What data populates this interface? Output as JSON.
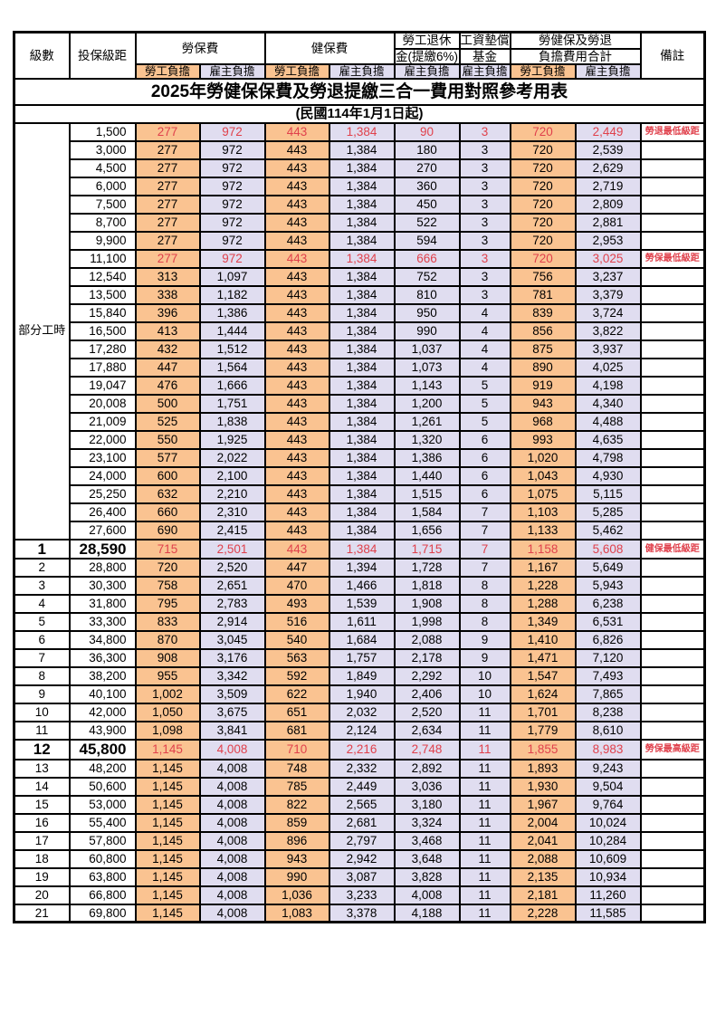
{
  "page": {
    "title": "2025年勞健保保費及勞退提繳三合一費用對照參考用表",
    "subtitle": "(民國114年1月1日起)"
  },
  "header": {
    "level": "級數",
    "bracket": "投保級距",
    "labor_insurance": "勞保費",
    "health_insurance": "健保費",
    "pension_top": "勞工退休",
    "pension_bottom": "金(提繳6%)",
    "wage_fund_top": "工資墊償",
    "wage_fund_bottom": "基金",
    "total_top": "勞健保及勞退",
    "total_bottom": "負擔費用合計",
    "remark": "備註",
    "employee_share": "勞工負擔",
    "employer_share": "雇主負擔"
  },
  "part_time_label": "部分工時",
  "colors": {
    "employee_bg": "#FAC391",
    "employer_bg": "#E0DDF0",
    "highlight_text": "#E0414C",
    "border": "#000000"
  },
  "rows": [
    {
      "level": null,
      "bracket": "1,500",
      "cells": [
        "277",
        "972",
        "443",
        "1,384",
        "90",
        "3",
        "720",
        "2,449"
      ],
      "remark": "勞退最低級距",
      "highlight": true,
      "big": false
    },
    {
      "level": null,
      "bracket": "3,000",
      "cells": [
        "277",
        "972",
        "443",
        "1,384",
        "180",
        "3",
        "720",
        "2,539"
      ],
      "remark": "",
      "highlight": false,
      "big": false
    },
    {
      "level": null,
      "bracket": "4,500",
      "cells": [
        "277",
        "972",
        "443",
        "1,384",
        "270",
        "3",
        "720",
        "2,629"
      ],
      "remark": "",
      "highlight": false,
      "big": false
    },
    {
      "level": null,
      "bracket": "6,000",
      "cells": [
        "277",
        "972",
        "443",
        "1,384",
        "360",
        "3",
        "720",
        "2,719"
      ],
      "remark": "",
      "highlight": false,
      "big": false
    },
    {
      "level": null,
      "bracket": "7,500",
      "cells": [
        "277",
        "972",
        "443",
        "1,384",
        "450",
        "3",
        "720",
        "2,809"
      ],
      "remark": "",
      "highlight": false,
      "big": false
    },
    {
      "level": null,
      "bracket": "8,700",
      "cells": [
        "277",
        "972",
        "443",
        "1,384",
        "522",
        "3",
        "720",
        "2,881"
      ],
      "remark": "",
      "highlight": false,
      "big": false
    },
    {
      "level": null,
      "bracket": "9,900",
      "cells": [
        "277",
        "972",
        "443",
        "1,384",
        "594",
        "3",
        "720",
        "2,953"
      ],
      "remark": "",
      "highlight": false,
      "big": false
    },
    {
      "level": null,
      "bracket": "11,100",
      "cells": [
        "277",
        "972",
        "443",
        "1,384",
        "666",
        "3",
        "720",
        "3,025"
      ],
      "remark": "勞保最低級距",
      "highlight": true,
      "big": false
    },
    {
      "level": null,
      "bracket": "12,540",
      "cells": [
        "313",
        "1,097",
        "443",
        "1,384",
        "752",
        "3",
        "756",
        "3,237"
      ],
      "remark": "",
      "highlight": false,
      "big": false
    },
    {
      "level": null,
      "bracket": "13,500",
      "cells": [
        "338",
        "1,182",
        "443",
        "1,384",
        "810",
        "3",
        "781",
        "3,379"
      ],
      "remark": "",
      "highlight": false,
      "big": false
    },
    {
      "level": null,
      "bracket": "15,840",
      "cells": [
        "396",
        "1,386",
        "443",
        "1,384",
        "950",
        "4",
        "839",
        "3,724"
      ],
      "remark": "",
      "highlight": false,
      "big": false
    },
    {
      "level": null,
      "bracket": "16,500",
      "cells": [
        "413",
        "1,444",
        "443",
        "1,384",
        "990",
        "4",
        "856",
        "3,822"
      ],
      "remark": "",
      "highlight": false,
      "big": false
    },
    {
      "level": null,
      "bracket": "17,280",
      "cells": [
        "432",
        "1,512",
        "443",
        "1,384",
        "1,037",
        "4",
        "875",
        "3,937"
      ],
      "remark": "",
      "highlight": false,
      "big": false
    },
    {
      "level": null,
      "bracket": "17,880",
      "cells": [
        "447",
        "1,564",
        "443",
        "1,384",
        "1,073",
        "4",
        "890",
        "4,025"
      ],
      "remark": "",
      "highlight": false,
      "big": false
    },
    {
      "level": null,
      "bracket": "19,047",
      "cells": [
        "476",
        "1,666",
        "443",
        "1,384",
        "1,143",
        "5",
        "919",
        "4,198"
      ],
      "remark": "",
      "highlight": false,
      "big": false
    },
    {
      "level": null,
      "bracket": "20,008",
      "cells": [
        "500",
        "1,751",
        "443",
        "1,384",
        "1,200",
        "5",
        "943",
        "4,340"
      ],
      "remark": "",
      "highlight": false,
      "big": false
    },
    {
      "level": null,
      "bracket": "21,009",
      "cells": [
        "525",
        "1,838",
        "443",
        "1,384",
        "1,261",
        "5",
        "968",
        "4,488"
      ],
      "remark": "",
      "highlight": false,
      "big": false
    },
    {
      "level": null,
      "bracket": "22,000",
      "cells": [
        "550",
        "1,925",
        "443",
        "1,384",
        "1,320",
        "6",
        "993",
        "4,635"
      ],
      "remark": "",
      "highlight": false,
      "big": false
    },
    {
      "level": null,
      "bracket": "23,100",
      "cells": [
        "577",
        "2,022",
        "443",
        "1,384",
        "1,386",
        "6",
        "1,020",
        "4,798"
      ],
      "remark": "",
      "highlight": false,
      "big": false
    },
    {
      "level": null,
      "bracket": "24,000",
      "cells": [
        "600",
        "2,100",
        "443",
        "1,384",
        "1,440",
        "6",
        "1,043",
        "4,930"
      ],
      "remark": "",
      "highlight": false,
      "big": false
    },
    {
      "level": null,
      "bracket": "25,250",
      "cells": [
        "632",
        "2,210",
        "443",
        "1,384",
        "1,515",
        "6",
        "1,075",
        "5,115"
      ],
      "remark": "",
      "highlight": false,
      "big": false
    },
    {
      "level": null,
      "bracket": "26,400",
      "cells": [
        "660",
        "2,310",
        "443",
        "1,384",
        "1,584",
        "7",
        "1,103",
        "5,285"
      ],
      "remark": "",
      "highlight": false,
      "big": false
    },
    {
      "level": null,
      "bracket": "27,600",
      "cells": [
        "690",
        "2,415",
        "443",
        "1,384",
        "1,656",
        "7",
        "1,133",
        "5,462"
      ],
      "remark": "",
      "highlight": false,
      "big": false
    },
    {
      "level": "1",
      "bracket": "28,590",
      "cells": [
        "715",
        "2,501",
        "443",
        "1,384",
        "1,715",
        "7",
        "1,158",
        "5,608"
      ],
      "remark": "健保最低級距",
      "highlight": true,
      "big": true
    },
    {
      "level": "2",
      "bracket": "28,800",
      "cells": [
        "720",
        "2,520",
        "447",
        "1,394",
        "1,728",
        "7",
        "1,167",
        "5,649"
      ],
      "remark": "",
      "highlight": false,
      "big": false
    },
    {
      "level": "3",
      "bracket": "30,300",
      "cells": [
        "758",
        "2,651",
        "470",
        "1,466",
        "1,818",
        "8",
        "1,228",
        "5,943"
      ],
      "remark": "",
      "highlight": false,
      "big": false
    },
    {
      "level": "4",
      "bracket": "31,800",
      "cells": [
        "795",
        "2,783",
        "493",
        "1,539",
        "1,908",
        "8",
        "1,288",
        "6,238"
      ],
      "remark": "",
      "highlight": false,
      "big": false
    },
    {
      "level": "5",
      "bracket": "33,300",
      "cells": [
        "833",
        "2,914",
        "516",
        "1,611",
        "1,998",
        "8",
        "1,349",
        "6,531"
      ],
      "remark": "",
      "highlight": false,
      "big": false
    },
    {
      "level": "6",
      "bracket": "34,800",
      "cells": [
        "870",
        "3,045",
        "540",
        "1,684",
        "2,088",
        "9",
        "1,410",
        "6,826"
      ],
      "remark": "",
      "highlight": false,
      "big": false
    },
    {
      "level": "7",
      "bracket": "36,300",
      "cells": [
        "908",
        "3,176",
        "563",
        "1,757",
        "2,178",
        "9",
        "1,471",
        "7,120"
      ],
      "remark": "",
      "highlight": false,
      "big": false
    },
    {
      "level": "8",
      "bracket": "38,200",
      "cells": [
        "955",
        "3,342",
        "592",
        "1,849",
        "2,292",
        "10",
        "1,547",
        "7,493"
      ],
      "remark": "",
      "highlight": false,
      "big": false
    },
    {
      "level": "9",
      "bracket": "40,100",
      "cells": [
        "1,002",
        "3,509",
        "622",
        "1,940",
        "2,406",
        "10",
        "1,624",
        "7,865"
      ],
      "remark": "",
      "highlight": false,
      "big": false
    },
    {
      "level": "10",
      "bracket": "42,000",
      "cells": [
        "1,050",
        "3,675",
        "651",
        "2,032",
        "2,520",
        "11",
        "1,701",
        "8,238"
      ],
      "remark": "",
      "highlight": false,
      "big": false
    },
    {
      "level": "11",
      "bracket": "43,900",
      "cells": [
        "1,098",
        "3,841",
        "681",
        "2,124",
        "2,634",
        "11",
        "1,779",
        "8,610"
      ],
      "remark": "",
      "highlight": false,
      "big": false
    },
    {
      "level": "12",
      "bracket": "45,800",
      "cells": [
        "1,145",
        "4,008",
        "710",
        "2,216",
        "2,748",
        "11",
        "1,855",
        "8,983"
      ],
      "remark": "勞保最高級距",
      "highlight": true,
      "big": true
    },
    {
      "level": "13",
      "bracket": "48,200",
      "cells": [
        "1,145",
        "4,008",
        "748",
        "2,332",
        "2,892",
        "11",
        "1,893",
        "9,243"
      ],
      "remark": "",
      "highlight": false,
      "big": false
    },
    {
      "level": "14",
      "bracket": "50,600",
      "cells": [
        "1,145",
        "4,008",
        "785",
        "2,449",
        "3,036",
        "11",
        "1,930",
        "9,504"
      ],
      "remark": "",
      "highlight": false,
      "big": false
    },
    {
      "level": "15",
      "bracket": "53,000",
      "cells": [
        "1,145",
        "4,008",
        "822",
        "2,565",
        "3,180",
        "11",
        "1,967",
        "9,764"
      ],
      "remark": "",
      "highlight": false,
      "big": false
    },
    {
      "level": "16",
      "bracket": "55,400",
      "cells": [
        "1,145",
        "4,008",
        "859",
        "2,681",
        "3,324",
        "11",
        "2,004",
        "10,024"
      ],
      "remark": "",
      "highlight": false,
      "big": false
    },
    {
      "level": "17",
      "bracket": "57,800",
      "cells": [
        "1,145",
        "4,008",
        "896",
        "2,797",
        "3,468",
        "11",
        "2,041",
        "10,284"
      ],
      "remark": "",
      "highlight": false,
      "big": false
    },
    {
      "level": "18",
      "bracket": "60,800",
      "cells": [
        "1,145",
        "4,008",
        "943",
        "2,942",
        "3,648",
        "11",
        "2,088",
        "10,609"
      ],
      "remark": "",
      "highlight": false,
      "big": false
    },
    {
      "level": "19",
      "bracket": "63,800",
      "cells": [
        "1,145",
        "4,008",
        "990",
        "3,087",
        "3,828",
        "11",
        "2,135",
        "10,934"
      ],
      "remark": "",
      "highlight": false,
      "big": false
    },
    {
      "level": "20",
      "bracket": "66,800",
      "cells": [
        "1,145",
        "4,008",
        "1,036",
        "3,233",
        "4,008",
        "11",
        "2,181",
        "11,260"
      ],
      "remark": "",
      "highlight": false,
      "big": false
    },
    {
      "level": "21",
      "bracket": "69,800",
      "cells": [
        "1,145",
        "4,008",
        "1,083",
        "3,378",
        "4,188",
        "11",
        "2,228",
        "11,585"
      ],
      "remark": "",
      "highlight": false,
      "big": false
    }
  ]
}
